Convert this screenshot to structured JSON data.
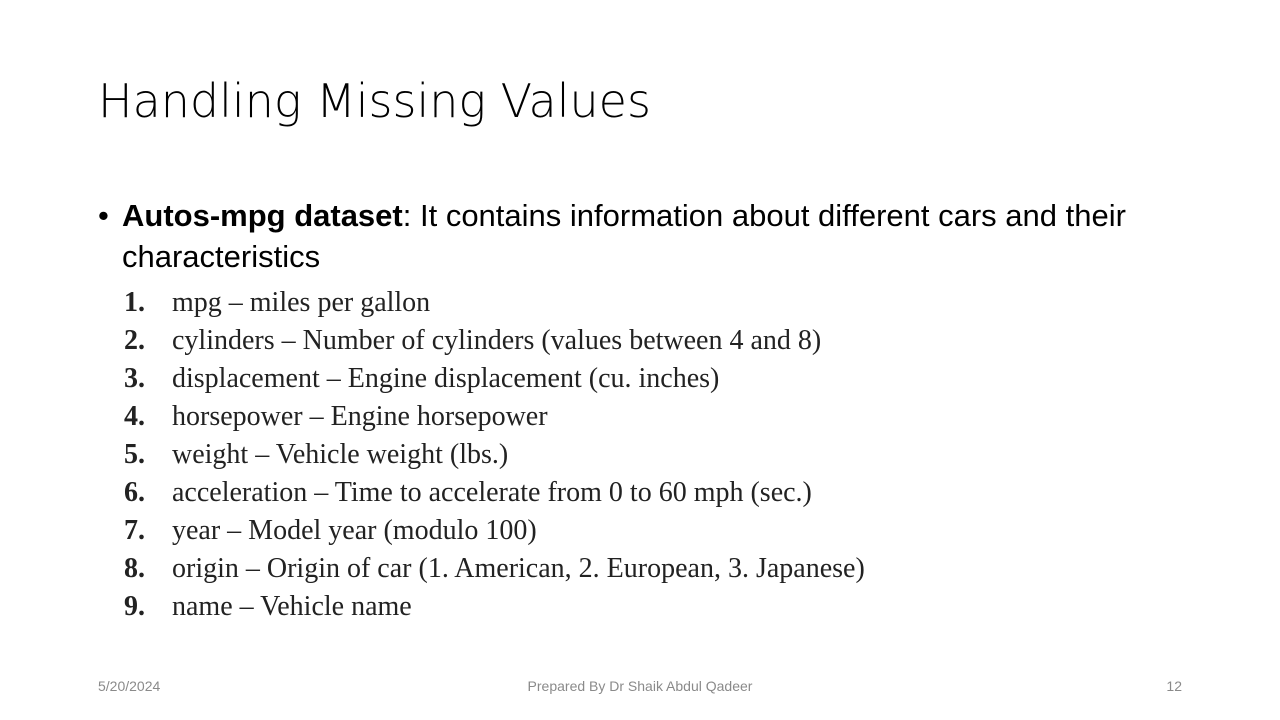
{
  "slide": {
    "title": "Handling Missing Values",
    "bullet": {
      "bold": "Autos-mpg dataset",
      "rest": ": It contains information about different cars and their characteristics"
    },
    "items": [
      {
        "num": "1.",
        "text": "mpg – miles per gallon"
      },
      {
        "num": "2.",
        "text": "cylinders – Number of cylinders (values between 4 and 8)"
      },
      {
        "num": "3.",
        "text": "displacement – Engine displacement (cu. inches)"
      },
      {
        "num": "4.",
        "text": "horsepower – Engine horsepower"
      },
      {
        "num": "5.",
        "text": "weight – Vehicle weight (lbs.)"
      },
      {
        "num": "6.",
        "text": "acceleration – Time to accelerate from 0 to 60 mph (sec.)"
      },
      {
        "num": "7.",
        "text": "year – Model year (modulo 100)"
      },
      {
        "num": "8.",
        "text": "origin – Origin of car (1. American, 2. European, 3. Japanese)"
      },
      {
        "num": "9.",
        "text": "name – Vehicle name"
      }
    ],
    "footer": {
      "date": "5/20/2024",
      "center": "Prepared By Dr Shaik Abdul Qadeer",
      "page": "12"
    }
  }
}
